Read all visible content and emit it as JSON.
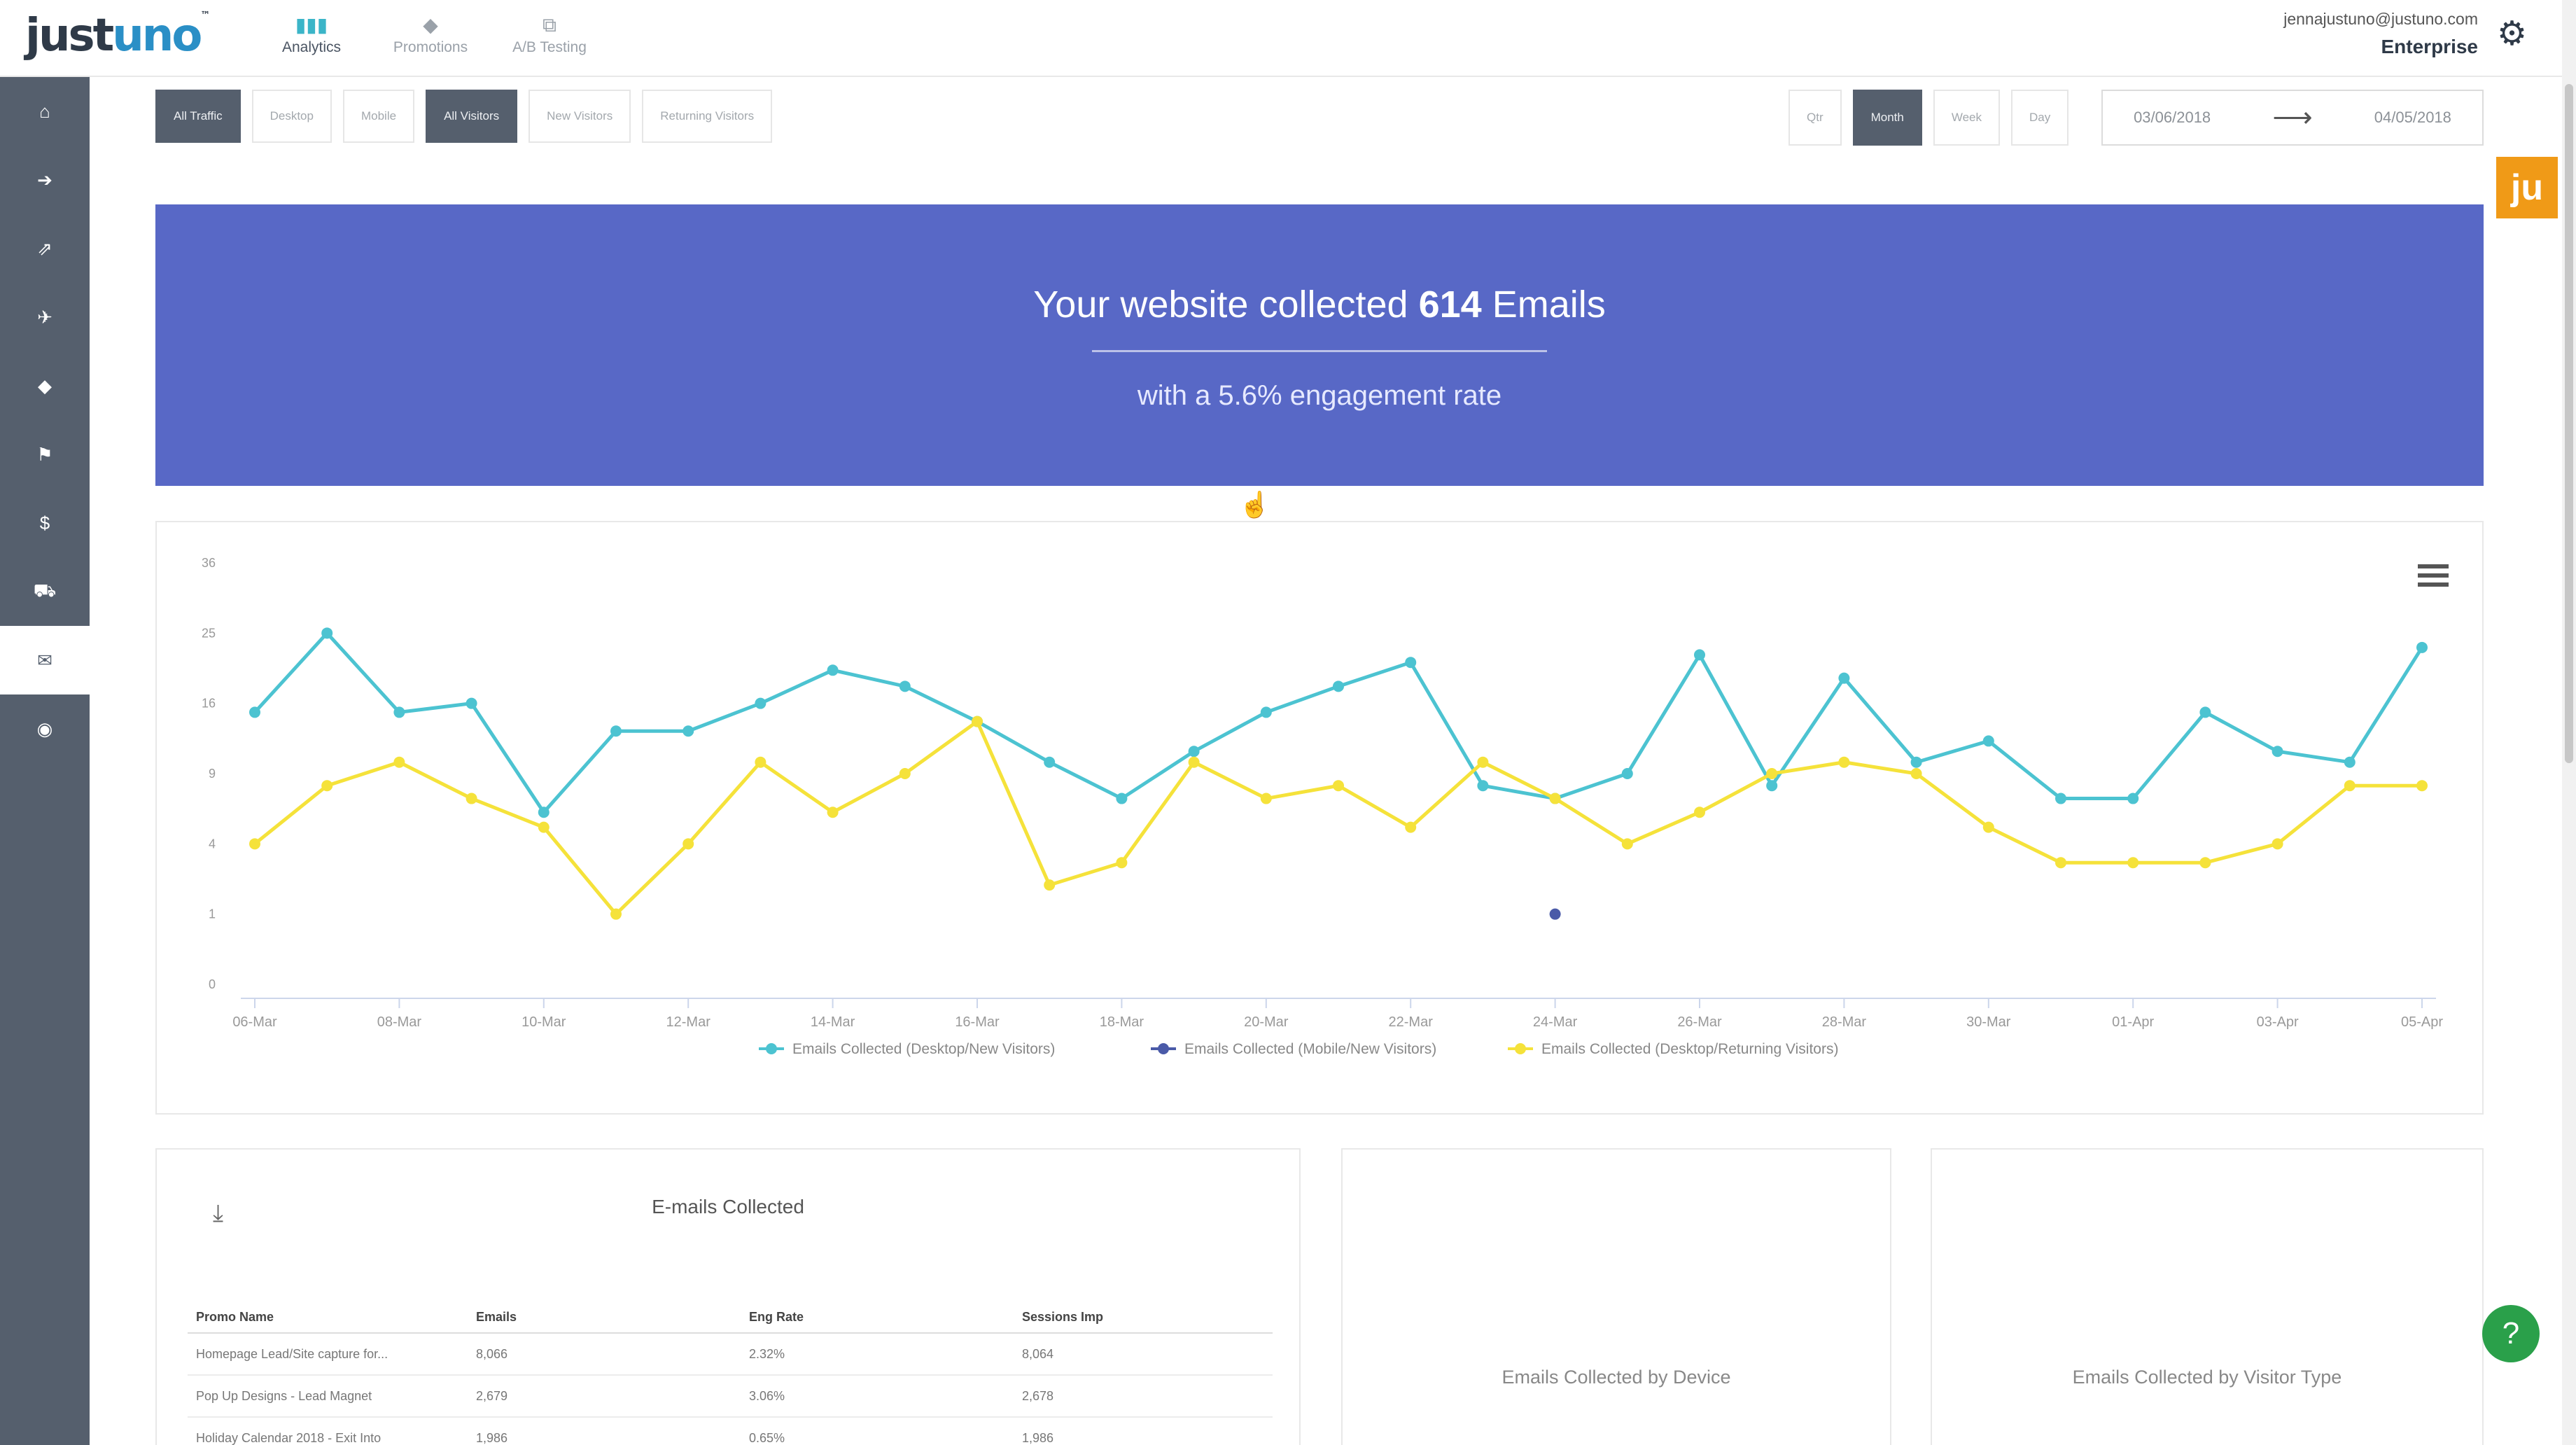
{
  "app": {
    "logo_part1": "just",
    "logo_part2": "uno",
    "logo_tm": "™",
    "nav": [
      {
        "label": "Analytics",
        "icon": "bar-chart-icon",
        "active": true
      },
      {
        "label": "Promotions",
        "icon": "tag-icon",
        "active": false
      },
      {
        "label": "A/B Testing",
        "icon": "copy-icon",
        "active": false
      }
    ],
    "user_email": "jennajustuno@justuno.com",
    "plan": "Enterprise",
    "gear_glyph": "⚙"
  },
  "sidebar": {
    "items": [
      {
        "name": "home-icon",
        "glyph": "⌂"
      },
      {
        "name": "sign-out-icon",
        "glyph": "➔"
      },
      {
        "name": "external-link-icon",
        "glyph": "⇗"
      },
      {
        "name": "plane-icon",
        "glyph": "✈"
      },
      {
        "name": "tags-icon",
        "glyph": "◆"
      },
      {
        "name": "flag-icon",
        "glyph": "⚑"
      },
      {
        "name": "dollar-icon",
        "glyph": "$"
      },
      {
        "name": "cart-icon",
        "glyph": "⛟"
      },
      {
        "name": "envelope-icon",
        "glyph": "✉"
      },
      {
        "name": "dashboard-icon",
        "glyph": "◉"
      }
    ],
    "active_index": 8
  },
  "filters": {
    "traffic": [
      "All Traffic",
      "Desktop",
      "Mobile"
    ],
    "visitors": [
      "All Visitors",
      "New Visitors",
      "Returning Visitors"
    ],
    "active_traffic": "All Traffic",
    "active_visitors": "All Visitors"
  },
  "period": {
    "options": [
      "Qtr",
      "Month",
      "Week",
      "Day"
    ],
    "active": "Month",
    "start_date": "03/06/2018",
    "end_date": "04/05/2018",
    "arrow": "⟶"
  },
  "ju_badge": "ju",
  "banner": {
    "prefix": "Your website collected ",
    "count": "614",
    "suffix": " Emails",
    "subline": "with a 5.6% engagement rate"
  },
  "chart_data": {
    "type": "line",
    "ytick_labels": [
      "0",
      "1",
      "4",
      "9",
      "16",
      "25",
      "36"
    ],
    "yscale": "sqrt",
    "x_labels": [
      "06-Mar",
      "08-Mar",
      "10-Mar",
      "12-Mar",
      "14-Mar",
      "16-Mar",
      "18-Mar",
      "20-Mar",
      "22-Mar",
      "24-Mar",
      "26-Mar",
      "28-Mar",
      "30-Mar",
      "01-Apr",
      "03-Apr",
      "05-Apr"
    ],
    "x": [
      "06-Mar",
      "07-Mar",
      "08-Mar",
      "09-Mar",
      "10-Mar",
      "11-Mar",
      "12-Mar",
      "13-Mar",
      "14-Mar",
      "15-Mar",
      "16-Mar",
      "17-Mar",
      "18-Mar",
      "19-Mar",
      "20-Mar",
      "21-Mar",
      "22-Mar",
      "23-Mar",
      "24-Mar",
      "25-Mar",
      "26-Mar",
      "27-Mar",
      "28-Mar",
      "29-Mar",
      "30-Mar",
      "31-Mar",
      "01-Apr",
      "02-Apr",
      "03-Apr",
      "04-Apr",
      "05-Apr"
    ],
    "series": [
      {
        "name": "Emails Collected (Desktop/New Visitors)",
        "color": "#4cc3d1",
        "values": [
          15,
          25,
          15,
          16,
          6,
          13,
          13,
          16,
          20,
          18,
          14,
          10,
          7,
          11,
          15,
          18,
          21,
          8,
          7,
          9,
          22,
          8,
          19,
          10,
          12,
          7,
          7,
          15,
          11,
          10,
          23
        ]
      },
      {
        "name": "Emails Collected (Mobile/New Visitors)",
        "color": "#4a5aa8",
        "points": [
          {
            "x": "24-Mar",
            "y": 1
          }
        ]
      },
      {
        "name": "Emails Collected (Desktop/Returning Visitors)",
        "color": "#f5e23a",
        "values": [
          4,
          8,
          10,
          7,
          5,
          1,
          4,
          10,
          6,
          9,
          14,
          2,
          3,
          10,
          7,
          8,
          5,
          10,
          7,
          4,
          6,
          9,
          10,
          9,
          5,
          3,
          3,
          3,
          4,
          8,
          8
        ]
      }
    ],
    "legend_position": "bottom-center"
  },
  "emails_panel": {
    "title": "E-mails Collected",
    "download_glyph": "⤓",
    "columns": [
      "Promo Name",
      "Emails",
      "Eng Rate",
      "Sessions Imp"
    ],
    "rows": [
      [
        "Homepage Lead/Site capture for...",
        "8,066",
        "2.32%",
        "8,064"
      ],
      [
        "Pop Up Designs - Lead Magnet",
        "2,679",
        "3.06%",
        "2,678"
      ],
      [
        "Holiday Calendar 2018 - Exit Into",
        "1,986",
        "0.65%",
        "1,986"
      ]
    ]
  },
  "device_panel": {
    "title": "Emails Collected by Device"
  },
  "visitor_panel": {
    "title": "Emails Collected by Visitor Type"
  },
  "help_glyph": "?"
}
